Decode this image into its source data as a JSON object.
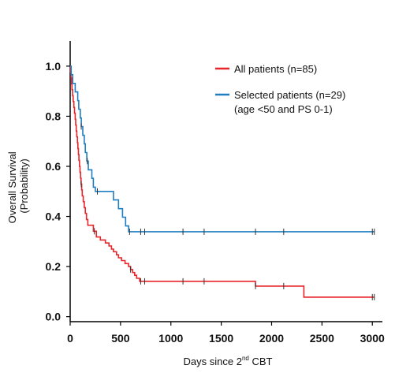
{
  "chart_data": {
    "type": "line",
    "subtype": "kaplan-meier-step",
    "xlabel": "Days since 2nd CBT",
    "xlabel_parts": {
      "pre": "Days since 2",
      "sup": "nd",
      "post": " CBT"
    },
    "ylabel_line1": "Overall Survival",
    "ylabel_line2": "(Probability)",
    "xlim": [
      0,
      3100
    ],
    "ylim": [
      -0.02,
      1.05
    ],
    "x_ticks": [
      0,
      500,
      1000,
      1500,
      2000,
      2500,
      3000
    ],
    "y_ticks": [
      0.0,
      0.2,
      0.4,
      0.6,
      0.8,
      1.0
    ],
    "y_tick_labels": [
      "0.0",
      "0.2",
      "0.4",
      "0.6",
      "0.8",
      "1.0"
    ],
    "grid": false,
    "legend_position": "top-right",
    "series": [
      {
        "name": "All patients (n=85)",
        "color": "#e8252a",
        "steps": [
          [
            0,
            1.0
          ],
          [
            4,
            0.976
          ],
          [
            8,
            0.953
          ],
          [
            13,
            0.929
          ],
          [
            18,
            0.906
          ],
          [
            24,
            0.882
          ],
          [
            30,
            0.859
          ],
          [
            37,
            0.835
          ],
          [
            43,
            0.812
          ],
          [
            50,
            0.788
          ],
          [
            55,
            0.765
          ],
          [
            60,
            0.741
          ],
          [
            66,
            0.718
          ],
          [
            72,
            0.694
          ],
          [
            77,
            0.671
          ],
          [
            82,
            0.647
          ],
          [
            87,
            0.624
          ],
          [
            92,
            0.6
          ],
          [
            98,
            0.576
          ],
          [
            103,
            0.553
          ],
          [
            108,
            0.529
          ],
          [
            114,
            0.506
          ],
          [
            120,
            0.482
          ],
          [
            130,
            0.459
          ],
          [
            140,
            0.435
          ],
          [
            150,
            0.412
          ],
          [
            162,
            0.388
          ],
          [
            175,
            0.365
          ],
          [
            230,
            0.341
          ],
          [
            260,
            0.318
          ],
          [
            300,
            0.306
          ],
          [
            350,
            0.294
          ],
          [
            385,
            0.282
          ],
          [
            410,
            0.27
          ],
          [
            430,
            0.259
          ],
          [
            460,
            0.247
          ],
          [
            480,
            0.235
          ],
          [
            510,
            0.224
          ],
          [
            545,
            0.212
          ],
          [
            580,
            0.2
          ],
          [
            600,
            0.188
          ],
          [
            620,
            0.176
          ],
          [
            640,
            0.165
          ],
          [
            660,
            0.153
          ],
          [
            690,
            0.141
          ],
          [
            1840,
            0.122
          ],
          [
            2320,
            0.078
          ],
          [
            3020,
            0.078
          ]
        ],
        "censor": [
          110,
          240,
          600,
          700,
          740,
          1120,
          1330,
          1840,
          2120,
          3000,
          3020
        ]
      },
      {
        "name": "Selected patients (n=29)",
        "name_line2": "(age <50 and PS 0-1)",
        "color": "#1f7ec2",
        "steps": [
          [
            0,
            1.0
          ],
          [
            10,
            0.966
          ],
          [
            25,
            0.931
          ],
          [
            50,
            0.897
          ],
          [
            75,
            0.862
          ],
          [
            85,
            0.828
          ],
          [
            100,
            0.793
          ],
          [
            110,
            0.759
          ],
          [
            125,
            0.724
          ],
          [
            140,
            0.69
          ],
          [
            150,
            0.655
          ],
          [
            165,
            0.621
          ],
          [
            180,
            0.586
          ],
          [
            215,
            0.552
          ],
          [
            230,
            0.517
          ],
          [
            250,
            0.5
          ],
          [
            430,
            0.466
          ],
          [
            480,
            0.431
          ],
          [
            520,
            0.397
          ],
          [
            550,
            0.362
          ],
          [
            580,
            0.339
          ],
          [
            3020,
            0.339
          ]
        ],
        "censor": [
          110,
          170,
          270,
          590,
          700,
          740,
          1120,
          1330,
          1840,
          2120,
          3000,
          3020
        ]
      }
    ]
  }
}
